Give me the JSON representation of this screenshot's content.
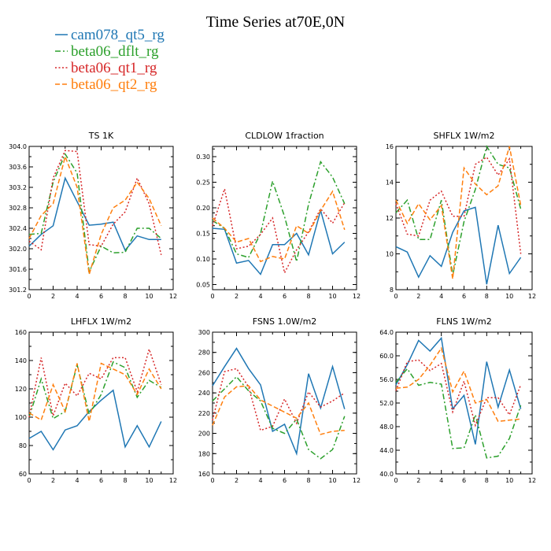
{
  "figure": {
    "title": "Time Series at70E,0N"
  },
  "legend": [
    {
      "name": "cam078_qt5_rg",
      "color": "#1f77b4",
      "dash": "solid"
    },
    {
      "name": "beta06_dflt_rg",
      "color": "#2ca02c",
      "dash": "dashdot"
    },
    {
      "name": "beta06_qt1_rg",
      "color": "#d62728",
      "dash": "dot"
    },
    {
      "name": "beta06_qt2_rg",
      "color": "#ff7f0e",
      "dash": "dash"
    }
  ],
  "chart_data": [
    {
      "type": "line",
      "title": "TS  1K",
      "x": [
        0,
        1,
        2,
        3,
        4,
        5,
        6,
        7,
        8,
        9,
        10,
        11
      ],
      "xlim": [
        0,
        12
      ],
      "xticks": [
        0,
        2,
        4,
        6,
        8,
        10,
        12
      ],
      "ylim": [
        301.2,
        304.0
      ],
      "yticks": [
        301.2,
        301.6,
        302.0,
        302.4,
        302.8,
        303.2,
        303.6,
        304.0
      ],
      "ytick_labels": [
        "301.2",
        "301.6",
        "302.0",
        "302.4",
        "302.8",
        "303.2",
        "303.6",
        "304.0"
      ],
      "series": [
        {
          "name": "cam078_qt5_rg",
          "values": [
            302.05,
            302.28,
            302.45,
            303.38,
            302.92,
            302.46,
            302.48,
            302.52,
            301.97,
            302.25,
            302.18,
            302.18
          ]
        },
        {
          "name": "beta06_dflt_rg",
          "values": [
            302.28,
            302.3,
            303.3,
            303.85,
            303.48,
            301.55,
            302.05,
            301.92,
            301.93,
            302.4,
            302.4,
            302.2
          ]
        },
        {
          "name": "beta06_qt1_rg",
          "values": [
            302.15,
            301.98,
            303.38,
            303.92,
            303.9,
            302.08,
            302.05,
            302.48,
            302.72,
            303.38,
            302.88,
            301.88
          ]
        },
        {
          "name": "beta06_qt2_rg",
          "values": [
            302.2,
            302.65,
            302.88,
            303.8,
            303.2,
            301.5,
            302.28,
            302.8,
            302.95,
            303.3,
            302.98,
            302.45
          ]
        }
      ]
    },
    {
      "type": "line",
      "title": "CLDLOW   1fraction",
      "x": [
        0,
        1,
        2,
        3,
        4,
        5,
        6,
        7,
        8,
        9,
        10,
        11
      ],
      "xlim": [
        0,
        12
      ],
      "xticks": [
        0,
        2,
        4,
        6,
        8,
        10,
        12
      ],
      "ylim": [
        0.04,
        0.32
      ],
      "yticks": [
        0.05,
        0.1,
        0.15,
        0.2,
        0.25,
        0.3
      ],
      "ytick_labels": [
        "0.05",
        "0.10",
        "0.15",
        "0.20",
        "0.25",
        "0.30"
      ],
      "series": [
        {
          "name": "cam078_qt5_rg",
          "values": [
            0.16,
            0.158,
            0.092,
            0.097,
            0.07,
            0.128,
            0.128,
            0.15,
            0.108,
            0.195,
            0.11,
            0.133
          ]
        },
        {
          "name": "beta06_dflt_rg",
          "values": [
            0.175,
            0.16,
            0.11,
            0.103,
            0.15,
            0.252,
            0.183,
            0.095,
            0.207,
            0.29,
            0.26,
            0.208
          ]
        },
        {
          "name": "beta06_qt1_rg",
          "values": [
            0.165,
            0.237,
            0.12,
            0.125,
            0.148,
            0.18,
            0.073,
            0.118,
            0.153,
            0.198,
            0.17,
            0.21
          ]
        },
        {
          "name": "beta06_qt2_rg",
          "values": [
            0.18,
            0.16,
            0.133,
            0.14,
            0.095,
            0.105,
            0.1,
            0.165,
            0.15,
            0.195,
            0.232,
            0.157
          ]
        }
      ]
    },
    {
      "type": "line",
      "title": "SHFLX   1W/m2",
      "x": [
        0,
        1,
        2,
        3,
        4,
        5,
        6,
        7,
        8,
        9,
        10,
        11
      ],
      "xlim": [
        0,
        12
      ],
      "xticks": [
        0,
        2,
        4,
        6,
        8,
        10,
        12
      ],
      "ylim": [
        8,
        16
      ],
      "yticks": [
        8,
        10,
        12,
        14,
        16
      ],
      "ytick_labels": [
        "8",
        "10",
        "12",
        "14",
        "16"
      ],
      "series": [
        {
          "name": "cam078_qt5_rg",
          "values": [
            10.4,
            10.1,
            8.7,
            9.9,
            9.3,
            11.2,
            12.4,
            12.6,
            8.3,
            11.6,
            8.9,
            9.8
          ]
        },
        {
          "name": "beta06_dflt_rg",
          "values": [
            12.3,
            13.0,
            10.8,
            10.8,
            13.0,
            8.8,
            11.8,
            13.6,
            16.0,
            15.0,
            14.8,
            12.5
          ]
        },
        {
          "name": "beta06_qt1_rg",
          "values": [
            12.8,
            11.1,
            11.0,
            13.0,
            13.5,
            12.1,
            12.1,
            15.0,
            15.4,
            14.4,
            15.3,
            10.0
          ]
        },
        {
          "name": "beta06_qt2_rg",
          "values": [
            13.0,
            11.7,
            12.8,
            11.9,
            12.7,
            8.6,
            14.8,
            13.9,
            13.3,
            13.8,
            16.0,
            12.7
          ]
        }
      ]
    },
    {
      "type": "line",
      "title": "LHFLX   1W/m2",
      "x": [
        0,
        1,
        2,
        3,
        4,
        5,
        6,
        7,
        8,
        9,
        10,
        11
      ],
      "xlim": [
        0,
        12
      ],
      "xticks": [
        0,
        2,
        4,
        6,
        8,
        10,
        12
      ],
      "ylim": [
        60,
        160
      ],
      "yticks": [
        60,
        80,
        100,
        120,
        140,
        160
      ],
      "ytick_labels": [
        "60",
        "80",
        "100",
        "120",
        "140",
        "160"
      ],
      "series": [
        {
          "name": "cam078_qt5_rg",
          "values": [
            85,
            90,
            77,
            91,
            94,
            104,
            112,
            119,
            79,
            94,
            79,
            97
          ]
        },
        {
          "name": "beta06_dflt_rg",
          "values": [
            100,
            127,
            99,
            104,
            137,
            102,
            116,
            139,
            135,
            114,
            126,
            121
          ]
        },
        {
          "name": "beta06_qt1_rg",
          "values": [
            100,
            142,
            101,
            124,
            115,
            131,
            127,
            142,
            142,
            118,
            148,
            123
          ]
        },
        {
          "name": "beta06_qt2_rg",
          "values": [
            103,
            98,
            123,
            104,
            138,
            97,
            138,
            134,
            130,
            116,
            134,
            120
          ]
        }
      ]
    },
    {
      "type": "line",
      "title": "FSNS   1.0W/m2",
      "x": [
        0,
        1,
        2,
        3,
        4,
        5,
        6,
        7,
        8,
        9,
        10,
        11
      ],
      "xlim": [
        0,
        12
      ],
      "xticks": [
        0,
        2,
        4,
        6,
        8,
        10,
        12
      ],
      "ylim": [
        160,
        300
      ],
      "yticks": [
        160,
        180,
        200,
        220,
        240,
        260,
        280,
        300
      ],
      "ytick_labels": [
        "160",
        "180",
        "200",
        "220",
        "240",
        "260",
        "280",
        "300"
      ],
      "series": [
        {
          "name": "cam078_qt5_rg",
          "values": [
            247,
            266,
            284,
            264,
            248,
            202,
            209,
            180,
            259,
            225,
            266,
            224
          ]
        },
        {
          "name": "beta06_dflt_rg",
          "values": [
            232,
            244,
            256,
            242,
            232,
            205,
            200,
            214,
            184,
            175,
            184,
            217
          ]
        },
        {
          "name": "beta06_qt1_rg",
          "values": [
            213,
            261,
            264,
            246,
            203,
            207,
            234,
            210,
            241,
            226,
            232,
            240
          ]
        },
        {
          "name": "beta06_qt2_rg",
          "values": [
            208,
            236,
            246,
            247,
            233,
            227,
            221,
            215,
            230,
            199,
            202,
            203
          ]
        }
      ]
    },
    {
      "type": "line",
      "title": "FLNS   1W/m2",
      "x": [
        0,
        1,
        2,
        3,
        4,
        5,
        6,
        7,
        8,
        9,
        10,
        11
      ],
      "xlim": [
        0,
        12
      ],
      "xticks": [
        0,
        2,
        4,
        6,
        8,
        10,
        12
      ],
      "ylim": [
        40,
        64
      ],
      "yticks": [
        40,
        44,
        48,
        52,
        56,
        60,
        64
      ],
      "ytick_labels": [
        "40.0",
        "44.0",
        "48.0",
        "52.0",
        "56.0",
        "60.0",
        "64.0"
      ],
      "series": [
        {
          "name": "cam078_qt5_rg",
          "values": [
            55.1,
            58.5,
            62.6,
            60.8,
            63.0,
            51.0,
            53.3,
            45.0,
            59.0,
            51.3,
            57.6,
            51.0
          ]
        },
        {
          "name": "beta06_dflt_rg",
          "values": [
            55.5,
            57.8,
            55.0,
            55.5,
            55.2,
            44.3,
            44.4,
            50.0,
            42.7,
            43.0,
            46.0,
            51.6
          ]
        },
        {
          "name": "beta06_qt1_rg",
          "values": [
            54.1,
            59.0,
            59.3,
            57.5,
            58.7,
            50.5,
            55.7,
            48.2,
            52.9,
            52.9,
            50.0,
            55.1
          ]
        },
        {
          "name": "beta06_qt2_rg",
          "values": [
            54.5,
            54.7,
            56.0,
            58.4,
            61.3,
            53.9,
            57.4,
            52.0,
            52.6,
            48.9,
            49.1,
            49.3
          ]
        }
      ]
    }
  ]
}
